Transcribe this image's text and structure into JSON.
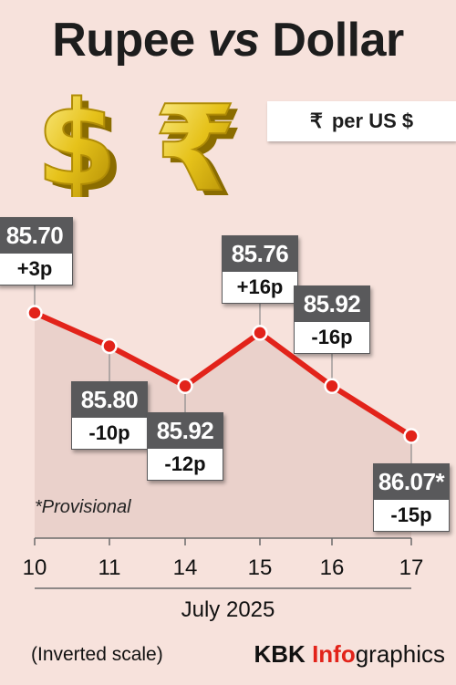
{
  "title": {
    "part1": "Rupee",
    "part2": "vs",
    "part3": "Dollar"
  },
  "unit": {
    "symbol": "₹",
    "text": "per US $"
  },
  "note": "*Provisional",
  "footnote": "(Inverted scale)",
  "brand": {
    "a": "KBK",
    "b": "Info",
    "c": "graphics"
  },
  "icons": [
    "dollar-icon",
    "rupee-icon"
  ],
  "colors": {
    "line": "#e2231a",
    "point": "#e2231a",
    "label_dark": "#59595b",
    "area": "#ead1cb",
    "background": "#f7e2dc"
  },
  "chart_data": {
    "type": "line",
    "xlabel": "July 2025",
    "ylabel": "",
    "y_scale": "inverted",
    "categories": [
      "10",
      "11",
      "14",
      "15",
      "16",
      "17"
    ],
    "values": [
      85.7,
      85.8,
      85.92,
      85.76,
      85.92,
      86.07
    ],
    "value_labels": [
      "85.70",
      "85.80",
      "85.92",
      "85.76",
      "85.92",
      "86.07*"
    ],
    "changes": [
      "+3p",
      "-10p",
      "-12p",
      "+16p",
      "-16p",
      "-15p"
    ],
    "label_placement": [
      "above",
      "below",
      "below",
      "above",
      "above",
      "below"
    ],
    "grid": false
  }
}
